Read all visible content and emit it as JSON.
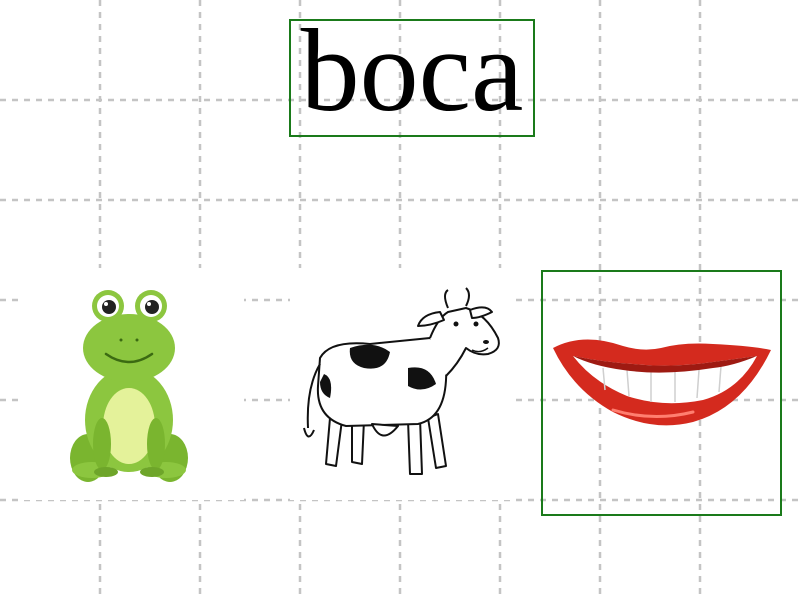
{
  "word": {
    "text": "boca"
  },
  "options": [
    {
      "id": "frog",
      "icon": "frog-icon"
    },
    {
      "id": "cow",
      "icon": "cow-icon"
    },
    {
      "id": "mouth",
      "icon": "mouth-icon",
      "selected": true
    }
  ],
  "colors": {
    "highlight": "#1a7a1a",
    "grid": "#c8c8c8",
    "lips": "#d42a1e",
    "frog_green": "#8cc63f",
    "frog_belly": "#e4f29a"
  }
}
